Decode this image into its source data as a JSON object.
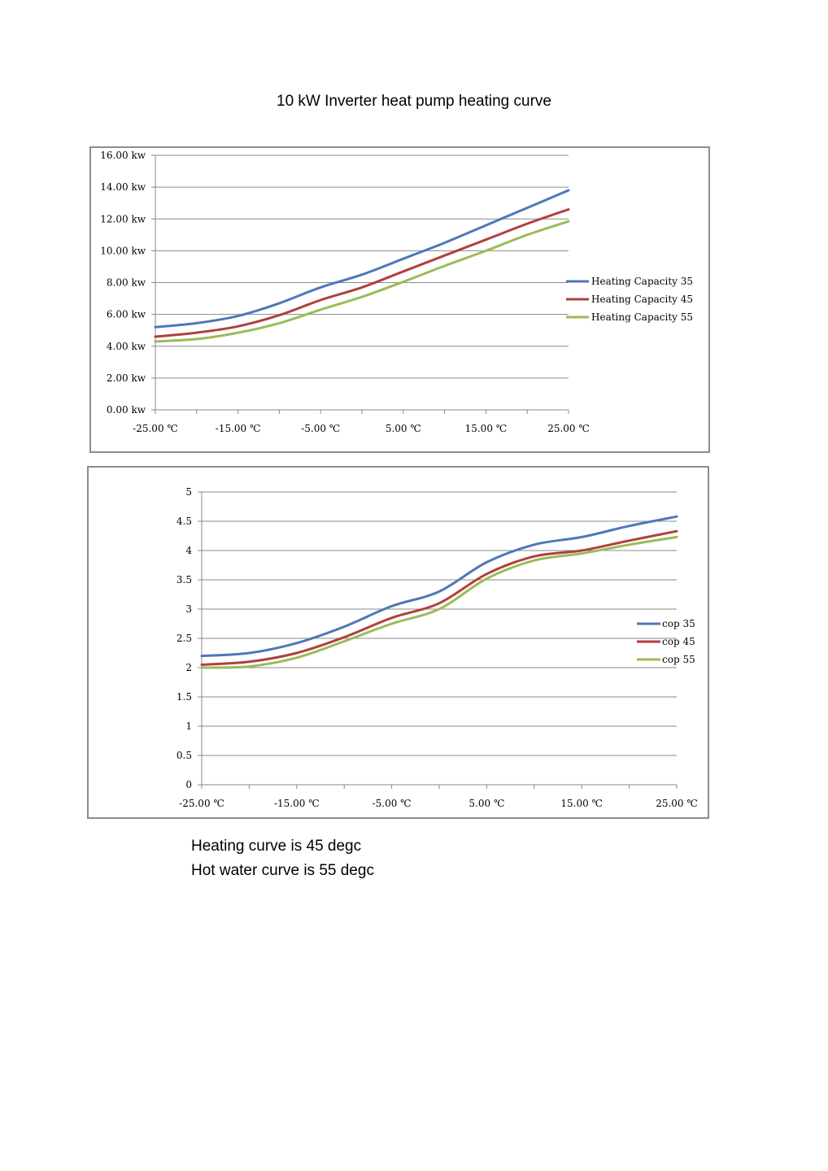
{
  "page_title": "10 kW Inverter heat pump heating curve",
  "notes": [
    "Heating curve is 45 degc",
    "Hot water  curve is 55 degc"
  ],
  "chart_data": [
    {
      "type": "line",
      "title": "",
      "xlabel": "",
      "ylabel": "",
      "x": [
        -25,
        -20,
        -15,
        -10,
        -5,
        0,
        5,
        10,
        15,
        20,
        25
      ],
      "x_tick_labels": [
        "-25.00 ℃",
        "-15.00 ℃",
        "-5.00 ℃",
        "5.00 ℃",
        "15.00 ℃",
        "25.00 ℃"
      ],
      "x_ticks": [
        -25,
        -15,
        -5,
        5,
        15,
        25
      ],
      "xlim": [
        -25,
        25
      ],
      "y_tick_labels": [
        "0.00 kw",
        "2.00 kw",
        "4.00 kw",
        "6.00 kw",
        "8.00 kw",
        "10.00 kw",
        "12.00 kw",
        "14.00 kw",
        "16.00 kw"
      ],
      "y_ticks": [
        0,
        2,
        4,
        6,
        8,
        10,
        12,
        14,
        16
      ],
      "ylim": [
        0,
        16
      ],
      "grid": true,
      "legend_position": "right",
      "series": [
        {
          "name": "Heating Capacity 35",
          "color": "#4f77b6",
          "values": [
            5.2,
            5.45,
            5.9,
            6.7,
            7.7,
            8.5,
            9.5,
            10.5,
            11.6,
            12.7,
            13.8
          ]
        },
        {
          "name": "Heating Capacity 45",
          "color": "#b0403c",
          "values": [
            4.6,
            4.85,
            5.25,
            5.95,
            6.9,
            7.7,
            8.7,
            9.7,
            10.7,
            11.7,
            12.6
          ]
        },
        {
          "name": "Heating Capacity 55",
          "color": "#9bbb59",
          "values": [
            4.3,
            4.45,
            4.85,
            5.45,
            6.3,
            7.1,
            8.05,
            9.05,
            10.0,
            11.0,
            11.85
          ]
        }
      ]
    },
    {
      "type": "line",
      "title": "",
      "xlabel": "",
      "ylabel": "",
      "x": [
        -25,
        -20,
        -15,
        -10,
        -5,
        0,
        5,
        10,
        15,
        20,
        25
      ],
      "x_tick_labels": [
        "-25.00 ℃",
        "-15.00 ℃",
        "-5.00 ℃",
        "5.00 ℃",
        "15.00 ℃",
        "25.00 ℃"
      ],
      "x_ticks": [
        -25,
        -15,
        -5,
        5,
        15,
        25
      ],
      "xlim": [
        -25,
        25
      ],
      "y_tick_labels": [
        "0",
        "0.5",
        "1",
        "1.5",
        "2",
        "2.5",
        "3",
        "3.5",
        "4",
        "4.5",
        "5"
      ],
      "y_ticks": [
        0,
        0.5,
        1,
        1.5,
        2,
        2.5,
        3,
        3.5,
        4,
        4.5,
        5
      ],
      "ylim": [
        0,
        5
      ],
      "grid": true,
      "legend_position": "right",
      "series": [
        {
          "name": "cop 35",
          "color": "#4f77b6",
          "values": [
            2.2,
            2.25,
            2.42,
            2.7,
            3.05,
            3.3,
            3.8,
            4.1,
            4.23,
            4.42,
            4.58
          ]
        },
        {
          "name": "cop 45",
          "color": "#b0403c",
          "values": [
            2.05,
            2.1,
            2.25,
            2.52,
            2.85,
            3.1,
            3.6,
            3.9,
            4.0,
            4.17,
            4.33
          ]
        },
        {
          "name": "cop 55",
          "color": "#9bbb59",
          "values": [
            2.0,
            2.02,
            2.17,
            2.45,
            2.75,
            3.0,
            3.52,
            3.83,
            3.95,
            4.1,
            4.23
          ]
        }
      ]
    }
  ]
}
